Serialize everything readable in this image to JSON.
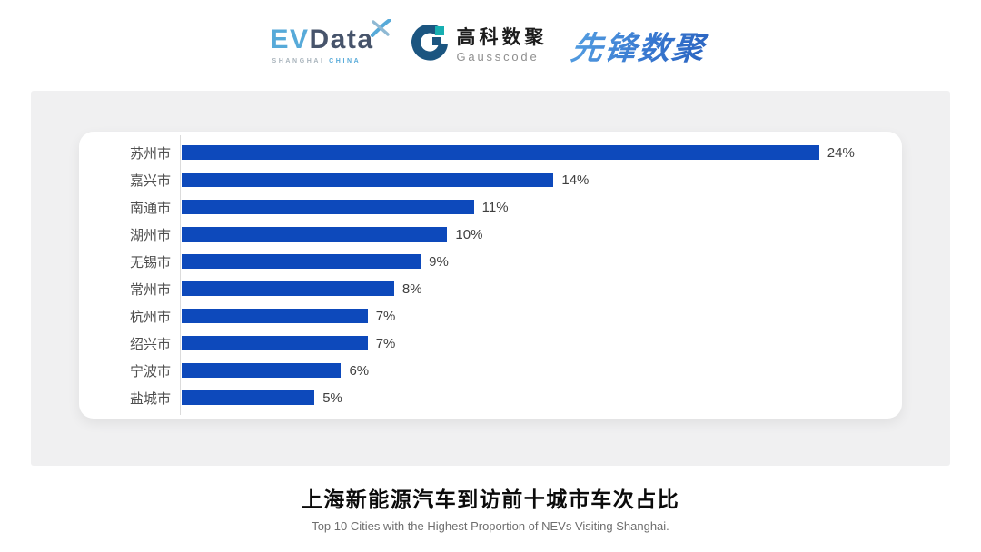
{
  "header": {
    "evdata": {
      "ev": "EV",
      "data": "Data",
      "sub_left": "SHANGHAI",
      "sub_right": "CHINA"
    },
    "gausscode": {
      "cn": "高科数聚",
      "en": "Gausscode"
    },
    "pioneer": "先锋数聚"
  },
  "chart_data": {
    "type": "bar",
    "orientation": "horizontal",
    "title": "上海新能源汽车到访前十城市车次占比",
    "subtitle": "Top 10 Cities with the Highest Proportion of  NEVs Visiting Shanghai.",
    "categories": [
      "苏州市",
      "嘉兴市",
      "南通市",
      "湖州市",
      "无锡市",
      "常州市",
      "杭州市",
      "绍兴市",
      "宁波市",
      "盐城市"
    ],
    "values": [
      24,
      14,
      11,
      10,
      9,
      8,
      7,
      7,
      6,
      5
    ],
    "value_labels": [
      "24%",
      "14%",
      "11%",
      "10%",
      "9%",
      "8%",
      "7%",
      "7%",
      "6%",
      "5%"
    ],
    "unit": "%",
    "max_value": 24,
    "bar_color": "#0D49BB",
    "axis_color": "#DBDBDB",
    "value_label_position": "right-of-bar",
    "legend": false,
    "grid": false
  }
}
